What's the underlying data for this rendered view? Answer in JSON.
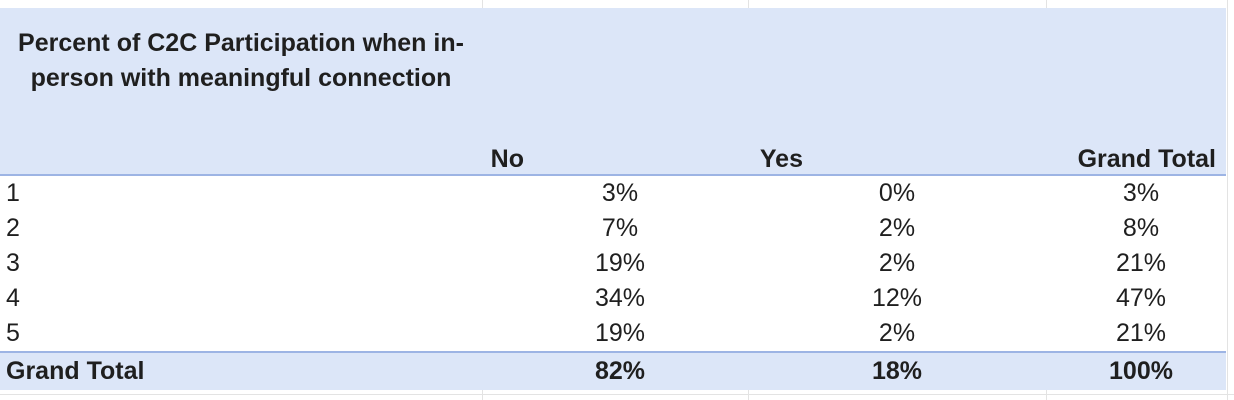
{
  "pivot": {
    "title": "Percent of C2C Participation when in-person with meaningful connection",
    "columns": {
      "no": "No",
      "yes": "Yes",
      "grand_total": "Grand Total"
    },
    "rows": [
      {
        "label": "1",
        "no": "3%",
        "yes": "0%",
        "total": "3%"
      },
      {
        "label": "2",
        "no": "7%",
        "yes": "2%",
        "total": "8%"
      },
      {
        "label": "3",
        "no": "19%",
        "yes": "2%",
        "total": "21%"
      },
      {
        "label": "4",
        "no": "34%",
        "yes": "12%",
        "total": "47%"
      },
      {
        "label": "5",
        "no": "19%",
        "yes": "2%",
        "total": "21%"
      }
    ],
    "grand_total": {
      "label": "Grand Total",
      "no": "82%",
      "yes": "18%",
      "total": "100%"
    }
  },
  "colors": {
    "header_fill": "#dce6f8",
    "rule": "#9db4e4"
  }
}
